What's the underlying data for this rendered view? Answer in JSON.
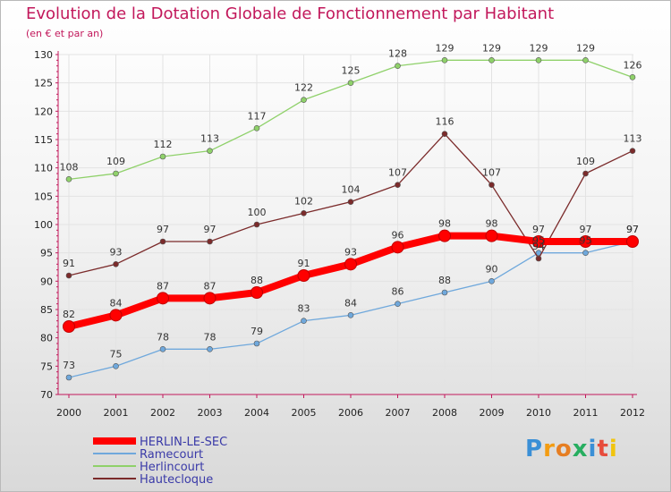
{
  "chart_data": {
    "type": "line",
    "title": "Evolution de la Dotation Globale de Fonctionnement par Habitant",
    "subtitle": "(en € et par an)",
    "xlabel": "",
    "ylabel": "",
    "ylim": [
      70,
      130
    ],
    "yticks": [
      70,
      75,
      80,
      85,
      90,
      95,
      100,
      105,
      110,
      115,
      120,
      125,
      130
    ],
    "categories": [
      "2000",
      "2001",
      "2002",
      "2003",
      "2004",
      "2005",
      "2006",
      "2007",
      "2008",
      "2009",
      "2010",
      "2011",
      "2012"
    ],
    "series": [
      {
        "name": "HERLIN-LE-SEC",
        "color": "#ff0000",
        "values": [
          82,
          84,
          87,
          87,
          88,
          91,
          93,
          96,
          98,
          98,
          97,
          97,
          97
        ]
      },
      {
        "name": "Ramecourt",
        "color": "#6fa8dc",
        "values": [
          73,
          75,
          78,
          78,
          79,
          83,
          84,
          86,
          88,
          90,
          95,
          95,
          97
        ]
      },
      {
        "name": "Herlincourt",
        "color": "#8fd16a",
        "values": [
          108,
          109,
          112,
          113,
          117,
          122,
          125,
          128,
          129,
          129,
          129,
          129,
          126
        ]
      },
      {
        "name": "Hautecloque",
        "color": "#7b2b2b",
        "values": [
          91,
          93,
          97,
          97,
          100,
          102,
          104,
          107,
          116,
          107,
          94,
          109,
          113
        ]
      }
    ]
  },
  "logo": {
    "letters": [
      "P",
      "r",
      "o",
      "x",
      "i",
      "t",
      "i"
    ],
    "colors": [
      "#3a8fd6",
      "#f39c12",
      "#e67e22",
      "#27ae60",
      "#3a8fd6",
      "#e74c3c",
      "#f1c40f"
    ]
  }
}
